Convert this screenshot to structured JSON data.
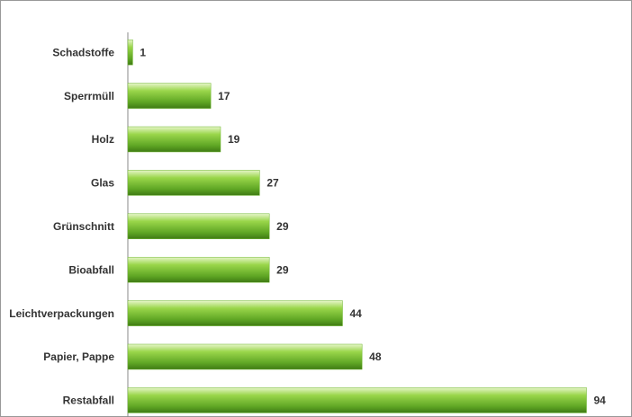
{
  "chart_data": {
    "type": "bar",
    "orientation": "horizontal",
    "categories": [
      "Schadstoffe",
      "Sperrmüll",
      "Holz",
      "Glas",
      "Grünschnitt",
      "Bioabfall",
      "Leichtverpackungen",
      "Papier, Pappe",
      "Restabfall"
    ],
    "values": [
      1,
      17,
      19,
      27,
      29,
      29,
      44,
      48,
      94
    ],
    "color": "#6cb52d",
    "xlim": [
      0,
      100
    ]
  }
}
